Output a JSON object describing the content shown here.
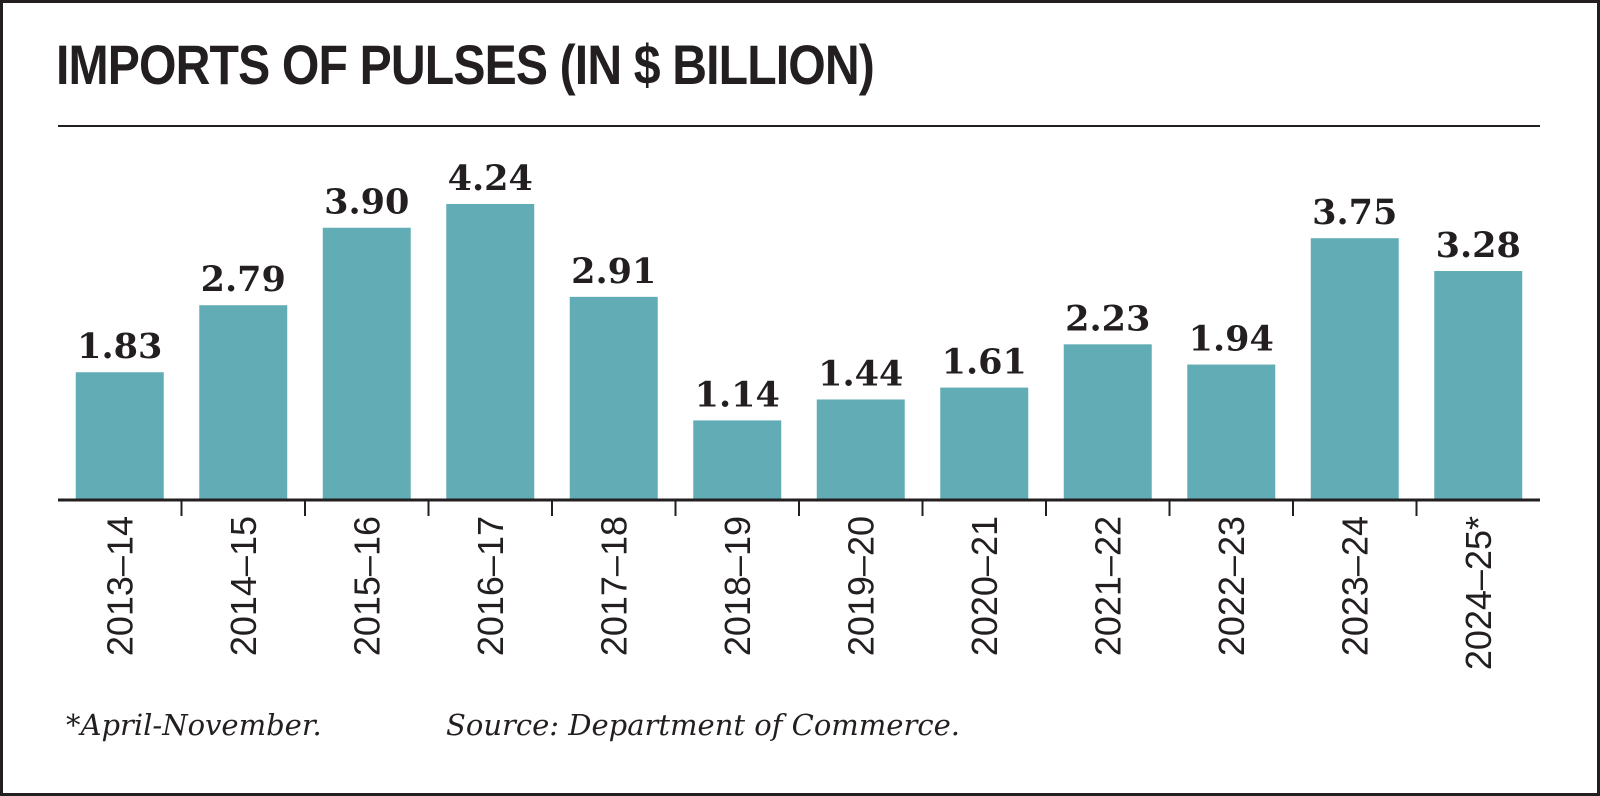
{
  "chart_data": {
    "type": "bar",
    "title": "IMPORTS OF PULSES  (IN $ BILLION)",
    "categories": [
      "2013-14",
      "2014-15",
      "2015-16",
      "2016-17",
      "2017-18",
      "2018-19",
      "2019-20",
      "2020-21",
      "2021-22",
      "2022-23",
      "2023-24",
      "2024-25*"
    ],
    "values": [
      1.83,
      2.79,
      3.9,
      4.24,
      2.91,
      1.14,
      1.44,
      1.61,
      2.23,
      1.94,
      3.75,
      3.28
    ],
    "value_labels": [
      "1.83",
      "2.79",
      "3.90",
      "4.24",
      "2.91",
      "1.14",
      "1.44",
      "1.61",
      "2.23",
      "1.94",
      "3.75",
      "3.28"
    ],
    "ylim": [
      0,
      4.24
    ],
    "bar_color": "#62adb5",
    "xlabel": "",
    "ylabel": ""
  },
  "footnote": "*April-November.",
  "source": "Source: Department of Commerce."
}
